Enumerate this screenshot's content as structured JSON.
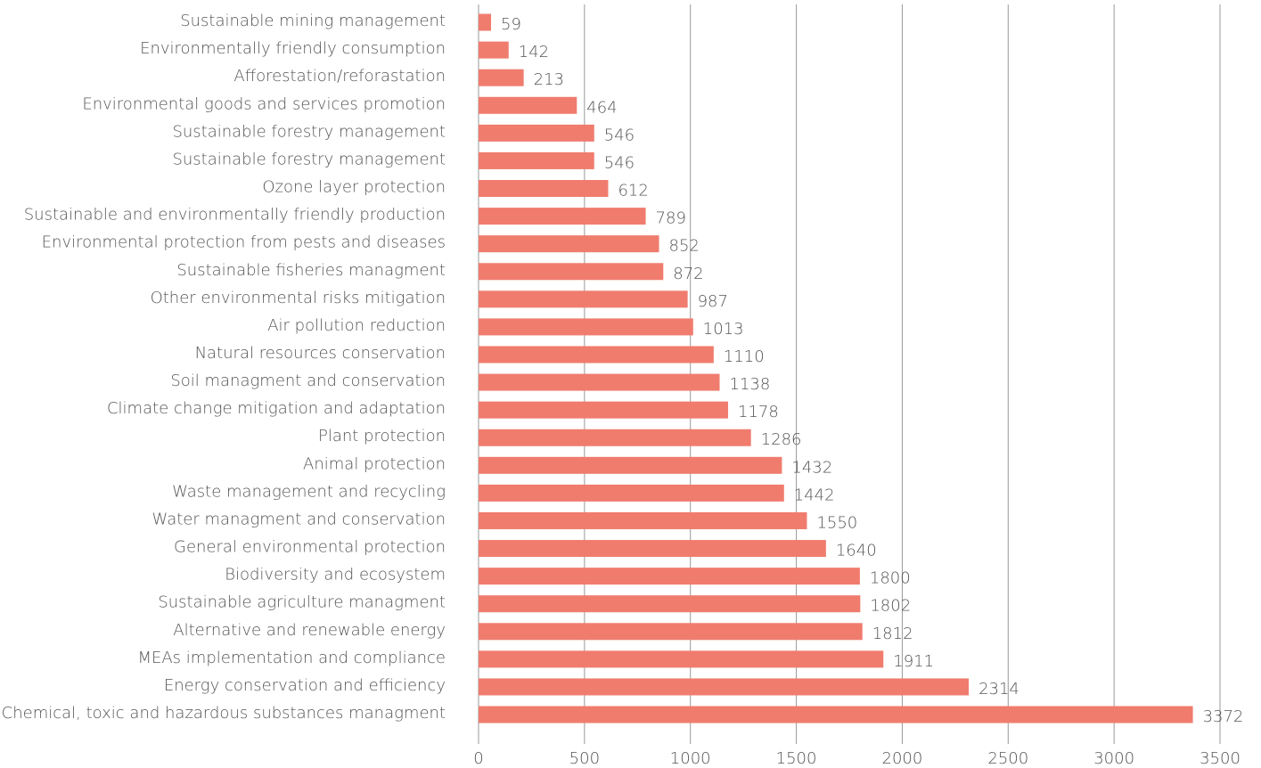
{
  "chart_data": {
    "type": "bar",
    "orientation": "horizontal",
    "categories": [
      "Sustainable mining management",
      "Environmentally friendly consumption",
      "Afforestation/reforastation",
      "Environmental goods and services promotion",
      "Sustainable forestry management",
      "Sustainable forestry management",
      "Ozone layer protection",
      "Sustainable and environmentally friendly production",
      "Environmental protection from pests and diseases",
      "Sustainable fisheries managment",
      "Other environmental risks mitigation",
      "Air pollution reduction",
      "Natural resources conservation",
      "Soil managment and conservation",
      "Climate change mitigation and adaptation",
      "Plant protection",
      "Animal protection",
      "Waste management and recycling",
      "Water managment and conservation",
      "General environmental protection",
      "Biodiversity and ecosystem",
      "Sustainable agriculture managment",
      "Alternative and renewable energy",
      "MEAs implementation and compliance",
      "Energy conservation and efficiency",
      "Chemical, toxic and hazardous substances managment"
    ],
    "values": [
      59,
      142,
      213,
      464,
      546,
      546,
      612,
      789,
      852,
      872,
      987,
      1013,
      1110,
      1138,
      1178,
      1286,
      1432,
      1442,
      1550,
      1640,
      1800,
      1802,
      1812,
      1911,
      2314,
      3372
    ],
    "color": "#f07c6e",
    "xlim": [
      0,
      3500
    ],
    "xticks": [
      0,
      500,
      1000,
      1500,
      2000,
      2500,
      3000,
      3500
    ],
    "grid": true
  }
}
